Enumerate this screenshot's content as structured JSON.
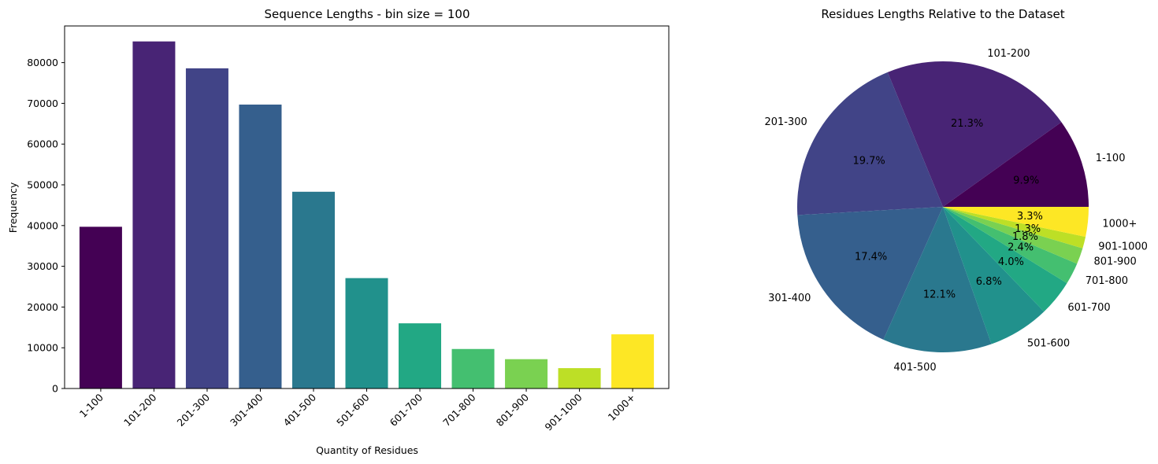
{
  "chart_data": [
    {
      "type": "bar",
      "title": "Sequence Lengths - bin size = 100",
      "xlabel": "Quantity of Residues",
      "ylabel": "Frequency",
      "categories": [
        "1-100",
        "101-200",
        "201-300",
        "301-400",
        "401-500",
        "501-600",
        "601-700",
        "701-800",
        "801-900",
        "901-1000",
        "1000+"
      ],
      "values": [
        39700,
        85200,
        78600,
        69700,
        48300,
        27100,
        16000,
        9700,
        7200,
        5000,
        13300
      ],
      "colors": [
        "#440154",
        "#482475",
        "#414487",
        "#355f8d",
        "#2a788e",
        "#21918c",
        "#22a884",
        "#44bf70",
        "#7ad151",
        "#bddf26",
        "#fde725"
      ],
      "ylim": [
        0,
        89000
      ],
      "yticks": [
        0,
        10000,
        20000,
        30000,
        40000,
        50000,
        60000,
        70000,
        80000
      ],
      "grid": false
    },
    {
      "type": "pie",
      "title": "Residues Lengths Relative to the Dataset",
      "labels": [
        "1-100",
        "101-200",
        "201-300",
        "301-400",
        "401-500",
        "501-600",
        "601-700",
        "701-800",
        "801-900",
        "901-1000",
        "1000+"
      ],
      "values": [
        9.9,
        21.3,
        19.7,
        17.4,
        12.1,
        6.8,
        4.0,
        2.4,
        1.8,
        1.3,
        3.3
      ],
      "percent_labels": [
        "9.9%",
        "21.3%",
        "19.7%",
        "17.4%",
        "12.1%",
        "6.8%",
        "4.0%",
        "2.4%",
        "1.8%",
        "1.3%",
        "3.3%"
      ],
      "colors": [
        "#440154",
        "#482475",
        "#414487",
        "#355f8d",
        "#2a788e",
        "#21918c",
        "#22a884",
        "#44bf70",
        "#7ad151",
        "#bddf26",
        "#fde725"
      ]
    }
  ]
}
